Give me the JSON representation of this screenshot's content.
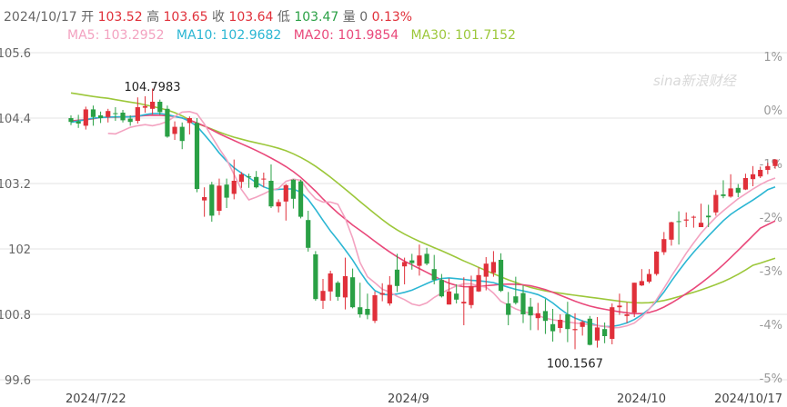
{
  "header": {
    "date": "2024/10/17",
    "open_label": "开",
    "open": "103.52",
    "high_label": "高",
    "high": "103.65",
    "close_label": "收",
    "close": "103.64",
    "low_label": "低",
    "low": "103.47",
    "vol_label": "量",
    "vol": "0",
    "change": "0.13%"
  },
  "ma_legend": [
    {
      "label": "MA5: 103.2952",
      "color": "#f3a2c0"
    },
    {
      "label": "MA10: 102.9682",
      "color": "#2bb6d3"
    },
    {
      "label": "MA20: 101.9854",
      "color": "#e9487a"
    },
    {
      "label": "MA30: 101.7152",
      "color": "#9cc73a"
    }
  ],
  "watermark": "sina新浪财经",
  "chart_data": {
    "type": "candlestick",
    "ylim": [
      99.6,
      105.6
    ],
    "y_ticks": [
      "105.6",
      "104.4",
      "103.2",
      "102",
      "100.8",
      "99.6"
    ],
    "right_ticks": [
      "1%",
      "0%",
      "-1%",
      "-2%",
      "-3%",
      "-4%",
      "-5%"
    ],
    "x_labels": [
      "2024/7/22",
      "2024/9",
      "2024/10",
      "2024/10/17"
    ],
    "annotations": [
      {
        "text": "104.7983",
        "index": 10,
        "value": 104.7983
      },
      {
        "text": "100.1567",
        "index": 67,
        "value": 100.1567
      }
    ],
    "up_color": "#e0303a",
    "down_color": "#2aa045",
    "candles": [
      [
        104.4,
        104.45,
        104.27,
        104.33
      ],
      [
        104.34,
        104.46,
        104.22,
        104.3
      ],
      [
        104.26,
        104.61,
        104.19,
        104.56
      ],
      [
        104.56,
        104.63,
        104.26,
        104.42
      ],
      [
        104.45,
        104.52,
        104.31,
        104.4
      ],
      [
        104.42,
        104.57,
        104.32,
        104.53
      ],
      [
        104.49,
        104.6,
        104.35,
        104.48
      ],
      [
        104.5,
        104.55,
        104.32,
        104.36
      ],
      [
        104.39,
        104.45,
        104.26,
        104.33
      ],
      [
        104.35,
        104.78,
        104.3,
        104.6
      ],
      [
        104.59,
        104.8,
        104.5,
        104.62
      ],
      [
        104.57,
        104.94,
        104.47,
        104.7
      ],
      [
        104.7,
        104.74,
        104.46,
        104.51
      ],
      [
        104.57,
        104.63,
        104.04,
        104.06
      ],
      [
        104.11,
        104.34,
        104.0,
        104.24
      ],
      [
        104.24,
        104.32,
        103.83,
        103.98
      ],
      [
        104.31,
        104.43,
        104.1,
        104.4
      ],
      [
        104.31,
        104.4,
        103.04,
        103.1
      ],
      [
        102.89,
        103.13,
        102.59,
        102.95
      ],
      [
        103.18,
        103.23,
        102.5,
        102.61
      ],
      [
        102.7,
        103.29,
        102.62,
        103.16
      ],
      [
        103.18,
        103.29,
        102.75,
        102.94
      ],
      [
        103.01,
        103.64,
        102.91,
        103.25
      ],
      [
        103.23,
        103.41,
        103.12,
        103.37
      ],
      [
        103.33,
        103.38,
        103.12,
        103.32
      ],
      [
        103.32,
        103.43,
        103.11,
        103.13
      ],
      [
        103.29,
        103.4,
        103.13,
        103.29
      ],
      [
        103.25,
        103.55,
        102.75,
        102.78
      ],
      [
        102.78,
        102.91,
        102.67,
        102.86
      ],
      [
        102.87,
        103.19,
        102.52,
        103.17
      ],
      [
        103.27,
        103.28,
        102.74,
        102.92
      ],
      [
        103.24,
        103.27,
        102.56,
        102.59
      ],
      [
        102.53,
        102.7,
        101.95,
        102.02
      ],
      [
        101.9,
        101.96,
        101.05,
        101.08
      ],
      [
        101.05,
        101.45,
        100.9,
        101.23
      ],
      [
        101.22,
        101.6,
        101.05,
        101.55
      ],
      [
        101.38,
        101.41,
        101.05,
        101.12
      ],
      [
        101.11,
        101.84,
        100.89,
        101.5
      ],
      [
        101.48,
        101.64,
        100.91,
        100.93
      ],
      [
        100.93,
        101.38,
        100.74,
        100.8
      ],
      [
        100.9,
        101.18,
        100.71,
        100.79
      ],
      [
        100.68,
        101.22,
        100.64,
        101.15
      ],
      [
        101.16,
        101.37,
        101.04,
        101.19
      ],
      [
        101.0,
        101.5,
        100.96,
        101.34
      ],
      [
        101.62,
        101.91,
        101.21,
        101.32
      ],
      [
        101.68,
        101.84,
        101.35,
        101.76
      ],
      [
        101.79,
        101.91,
        101.62,
        101.74
      ],
      [
        101.69,
        102.08,
        101.51,
        101.88
      ],
      [
        101.91,
        102.02,
        101.7,
        101.73
      ],
      [
        101.63,
        101.89,
        101.35,
        101.43
      ],
      [
        101.43,
        101.54,
        101.11,
        101.13
      ],
      [
        100.98,
        101.46,
        100.98,
        101.22
      ],
      [
        101.18,
        101.35,
        101.0,
        101.07
      ],
      [
        101.0,
        101.48,
        100.6,
        101.03
      ],
      [
        100.97,
        101.51,
        100.91,
        101.32
      ],
      [
        101.22,
        101.66,
        101.21,
        101.52
      ],
      [
        101.49,
        101.85,
        101.24,
        101.73
      ],
      [
        101.56,
        101.96,
        101.49,
        101.76
      ],
      [
        101.8,
        101.92,
        101.21,
        101.23
      ],
      [
        101.0,
        101.21,
        100.6,
        100.79
      ],
      [
        101.13,
        101.49,
        100.98,
        101.01
      ],
      [
        101.19,
        101.33,
        100.64,
        100.8
      ],
      [
        100.94,
        101.1,
        100.51,
        100.78
      ],
      [
        100.73,
        101.01,
        100.51,
        100.82
      ],
      [
        100.86,
        101.08,
        100.44,
        100.68
      ],
      [
        100.62,
        100.9,
        100.3,
        100.49
      ],
      [
        100.55,
        100.8,
        100.46,
        100.7
      ],
      [
        100.8,
        101.03,
        100.29,
        100.53
      ],
      [
        100.51,
        100.82,
        100.16,
        100.53
      ],
      [
        100.57,
        100.69,
        100.41,
        100.66
      ],
      [
        100.72,
        100.77,
        100.23,
        100.24
      ],
      [
        100.32,
        100.75,
        100.19,
        100.56
      ],
      [
        100.53,
        100.65,
        100.27,
        100.4
      ],
      [
        100.35,
        101.0,
        100.25,
        100.93
      ],
      [
        100.93,
        101.18,
        100.79,
        100.96
      ],
      [
        100.77,
        101.02,
        100.64,
        100.8
      ],
      [
        100.83,
        101.38,
        100.75,
        101.38
      ],
      [
        101.33,
        101.63,
        101.32,
        101.41
      ],
      [
        101.4,
        101.63,
        101.37,
        101.54
      ],
      [
        101.54,
        101.96,
        101.51,
        101.95
      ],
      [
        101.94,
        102.31,
        101.89,
        102.18
      ],
      [
        102.17,
        102.5,
        102.06,
        102.49
      ],
      [
        102.51,
        102.69,
        102.08,
        102.5
      ],
      [
        102.52,
        102.67,
        102.4,
        102.54
      ],
      [
        102.59,
        102.61,
        102.39,
        102.59
      ],
      [
        102.4,
        102.83,
        102.42,
        102.48
      ],
      [
        102.61,
        102.81,
        102.4,
        102.58
      ],
      [
        102.67,
        103.08,
        102.61,
        102.99
      ],
      [
        103.0,
        103.26,
        102.93,
        102.97
      ],
      [
        102.96,
        103.37,
        102.94,
        103.11
      ],
      [
        103.12,
        103.19,
        102.95,
        103.03
      ],
      [
        103.09,
        103.38,
        103.08,
        103.3
      ],
      [
        103.28,
        103.52,
        103.15,
        103.37
      ],
      [
        103.33,
        103.51,
        103.3,
        103.45
      ],
      [
        103.45,
        103.58,
        103.37,
        103.52
      ],
      [
        103.52,
        103.65,
        103.47,
        103.64
      ]
    ],
    "ma_series": {
      "MA5": [
        104.12,
        104.11,
        104.17,
        104.23,
        104.26,
        104.28,
        104.26,
        104.29,
        104.34,
        104.43,
        104.51,
        104.52,
        104.48,
        104.29,
        104.06,
        103.84,
        103.64,
        103.37,
        103.09,
        102.9,
        102.95,
        103.01,
        103.08,
        103.11,
        103.24,
        103.28,
        103.26,
        103.07,
        102.92,
        102.86,
        102.86,
        102.82,
        102.56,
        102.2,
        101.75,
        101.49,
        101.38,
        101.26,
        101.21,
        101.13,
        101.07,
        100.99,
        100.96,
        101.01,
        101.11,
        101.19,
        101.26,
        101.32,
        101.36,
        101.36,
        101.32,
        101.3,
        101.19,
        101.04,
        100.97,
        100.9,
        100.85,
        100.82,
        100.78,
        100.73,
        100.7,
        100.68,
        100.66,
        100.64,
        100.63,
        100.61,
        100.59,
        100.58,
        100.55,
        100.56,
        100.59,
        100.64,
        100.75,
        100.89,
        101.07,
        101.28,
        101.5,
        101.71,
        101.92,
        102.11,
        102.29,
        102.44,
        102.58,
        102.7,
        102.81,
        102.92,
        103.01,
        103.1,
        103.18,
        103.25,
        103.3
      ]
    }
  }
}
